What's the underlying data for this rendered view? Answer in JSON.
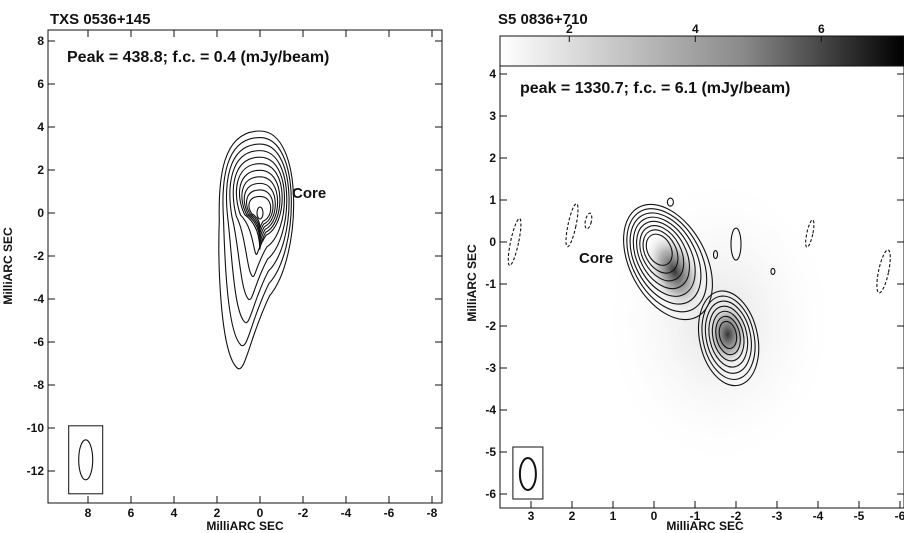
{
  "chart_data": [
    {
      "type": "contour",
      "title": "TXS 0536+145",
      "annotation": "Peak = 438.8;  f.c. = 0.4 (mJy/beam)",
      "component_label": "Core",
      "xlabel": "MilliARC SEC",
      "ylabel": "MilliARC SEC",
      "xlim": [
        9,
        -8.5
      ],
      "ylim": [
        -13,
        8.3
      ],
      "xticks": [
        8,
        6,
        4,
        2,
        0,
        -2,
        -4,
        -6,
        -8
      ],
      "yticks": [
        8,
        6,
        4,
        2,
        0,
        -2,
        -4,
        -6,
        -8,
        -10,
        -12
      ],
      "peak_mJy_per_beam": 438.8,
      "first_contour_mJy_per_beam": 0.4,
      "peak_position": [
        0,
        0
      ],
      "contour_levels": 11,
      "beam": {
        "x": 8.2,
        "y": -11.2
      }
    },
    {
      "type": "contour",
      "title": "S5 0836+710",
      "annotation": "peak = 1330.7;  f.c. = 6.1 (mJy/beam)",
      "component_label": "Core",
      "xlabel": "MilliARC SEC",
      "ylabel": "MilliARC SEC",
      "xlim": [
        3.5,
        -6
      ],
      "ylim": [
        -6.3,
        4.2
      ],
      "xticks": [
        3,
        2,
        1,
        0,
        -1,
        -2,
        -3,
        -4,
        -5,
        -6
      ],
      "yticks": [
        4,
        3,
        2,
        1,
        0,
        -1,
        -2,
        -3,
        -4,
        -5,
        -6
      ],
      "colorbar_ticks": [
        2,
        4,
        6
      ],
      "colorbar_ticks_shown": [
        "2",
        "4",
        "6"
      ],
      "peak_mJy_per_beam": 1330.7,
      "first_contour_mJy_per_beam": 6.1,
      "components": [
        {
          "name": "Core",
          "x": 0,
          "y": 0
        },
        {
          "name": "",
          "x": -1.8,
          "y": -2.2
        }
      ],
      "beam": {
        "x": 3.1,
        "y": -5.5
      }
    }
  ]
}
